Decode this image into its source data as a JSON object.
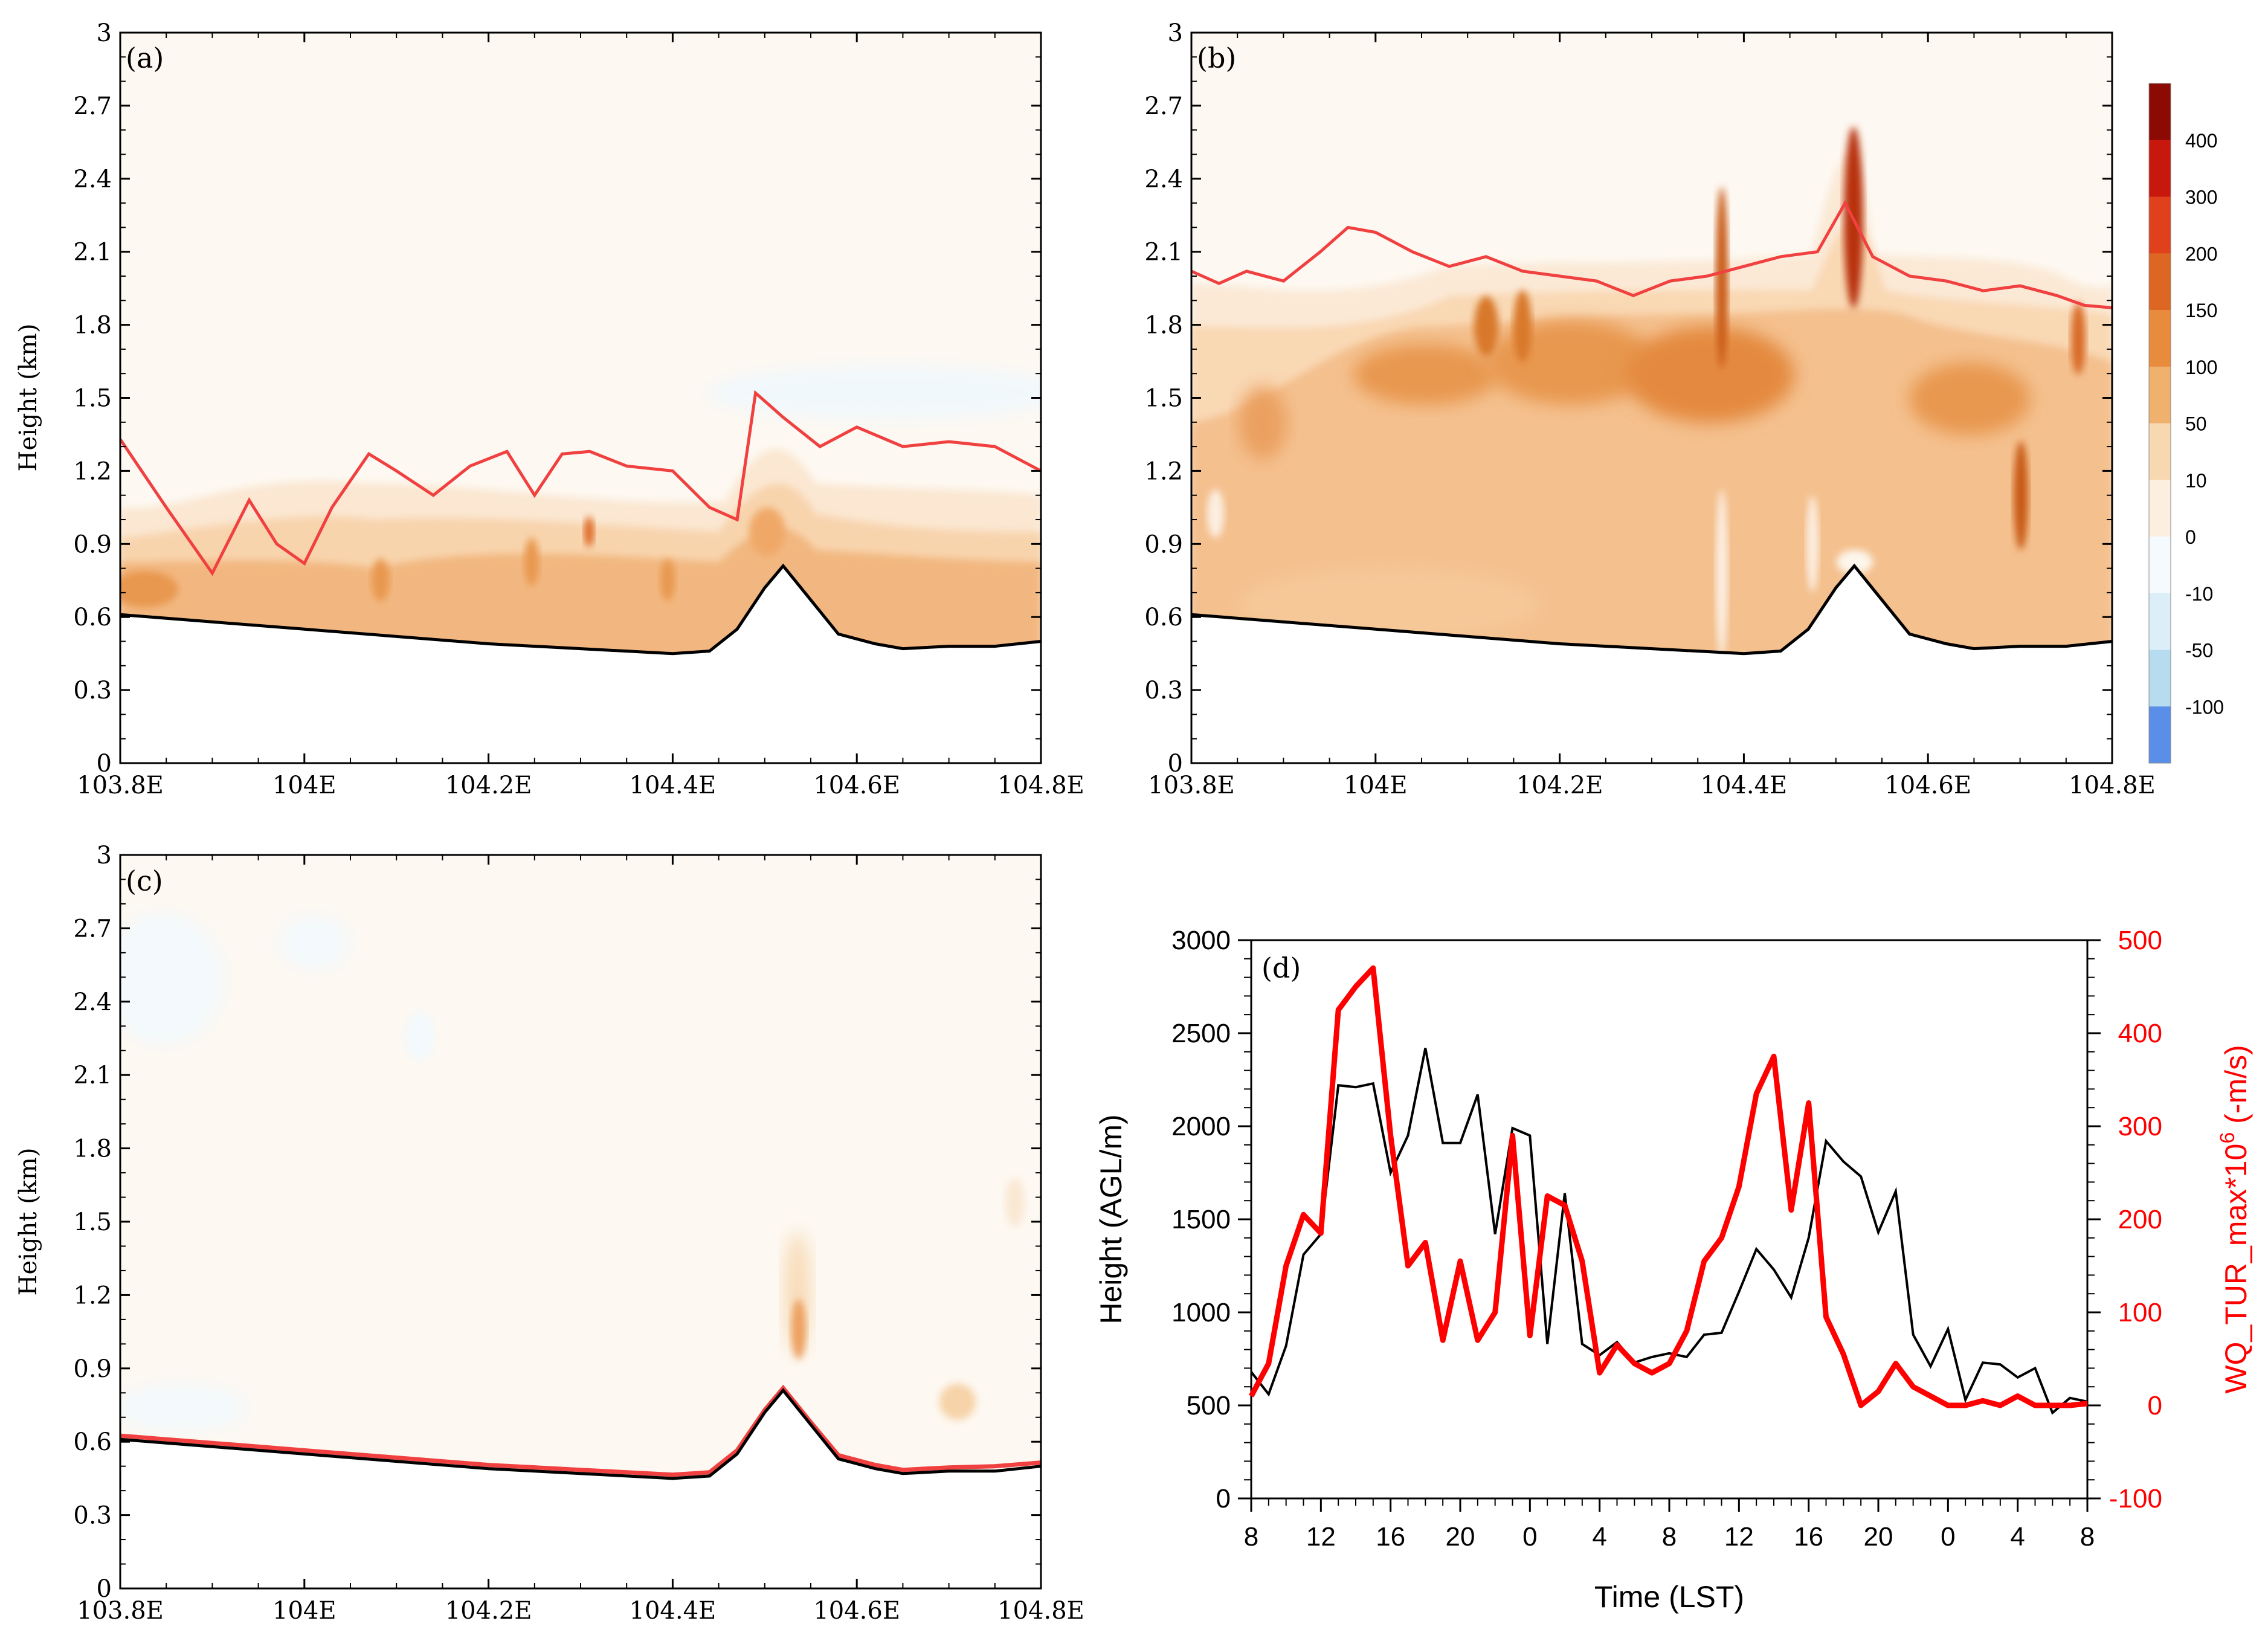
{
  "figure": {
    "shared_x_ticks": [
      "103.8E",
      "104E",
      "104.2E",
      "104.4E",
      "104.6E",
      "104.8E"
    ],
    "shared_y_ticks": [
      "0",
      "0.3",
      "0.6",
      "0.9",
      "1.2",
      "1.5",
      "1.8",
      "2.1",
      "2.4",
      "2.7",
      "3"
    ],
    "shared_ylabel": "Height (km)"
  },
  "colorbar": {
    "labels": [
      "400",
      "300",
      "200",
      "150",
      "100",
      "50",
      "10",
      "0",
      "-10",
      "-50",
      "-100"
    ],
    "colors": [
      "#8b0a04",
      "#c8180e",
      "#e0401c",
      "#dc6622",
      "#e88b3c",
      "#f0b06e",
      "#f8d8b0",
      "#fcefe0",
      "#f4fafd",
      "#dceef8",
      "#b8dcef",
      "#5a8ee8"
    ]
  },
  "chart_data": [
    {
      "panel": "a",
      "type": "contour_cross_section",
      "label": "(a)",
      "xlim": [
        103.8,
        104.8
      ],
      "ylim": [
        0,
        3
      ],
      "ylabel": "Height (km)",
      "terrain_km": [
        [
          103.8,
          0.61
        ],
        [
          103.9,
          0.58
        ],
        [
          104.0,
          0.55
        ],
        [
          104.1,
          0.52
        ],
        [
          104.2,
          0.49
        ],
        [
          104.3,
          0.47
        ],
        [
          104.4,
          0.45
        ],
        [
          104.44,
          0.46
        ],
        [
          104.47,
          0.55
        ],
        [
          104.5,
          0.72
        ],
        [
          104.52,
          0.81
        ],
        [
          104.55,
          0.67
        ],
        [
          104.58,
          0.53
        ],
        [
          104.62,
          0.49
        ],
        [
          104.65,
          0.47
        ],
        [
          104.7,
          0.48
        ],
        [
          104.75,
          0.48
        ],
        [
          104.8,
          0.5
        ]
      ],
      "pbl_height_km": [
        [
          103.8,
          1.33
        ],
        [
          103.85,
          1.05
        ],
        [
          103.9,
          0.78
        ],
        [
          103.94,
          1.08
        ],
        [
          103.97,
          0.9
        ],
        [
          104.0,
          0.82
        ],
        [
          104.03,
          1.05
        ],
        [
          104.07,
          1.27
        ],
        [
          104.1,
          1.2
        ],
        [
          104.14,
          1.1
        ],
        [
          104.18,
          1.22
        ],
        [
          104.22,
          1.28
        ],
        [
          104.25,
          1.1
        ],
        [
          104.28,
          1.27
        ],
        [
          104.31,
          1.28
        ],
        [
          104.35,
          1.22
        ],
        [
          104.4,
          1.2
        ],
        [
          104.44,
          1.05
        ],
        [
          104.47,
          1.0
        ],
        [
          104.49,
          1.52
        ],
        [
          104.52,
          1.42
        ],
        [
          104.56,
          1.3
        ],
        [
          104.6,
          1.38
        ],
        [
          104.65,
          1.3
        ],
        [
          104.7,
          1.32
        ],
        [
          104.75,
          1.3
        ],
        [
          104.8,
          1.2
        ]
      ]
    },
    {
      "panel": "b",
      "type": "contour_cross_section",
      "label": "(b)",
      "xlim": [
        103.8,
        104.8
      ],
      "ylim": [
        0,
        3
      ],
      "ylabel": "",
      "terrain_km": [
        [
          103.8,
          0.61
        ],
        [
          103.9,
          0.58
        ],
        [
          104.0,
          0.55
        ],
        [
          104.1,
          0.52
        ],
        [
          104.2,
          0.49
        ],
        [
          104.3,
          0.47
        ],
        [
          104.4,
          0.45
        ],
        [
          104.44,
          0.46
        ],
        [
          104.47,
          0.55
        ],
        [
          104.5,
          0.72
        ],
        [
          104.52,
          0.81
        ],
        [
          104.55,
          0.67
        ],
        [
          104.58,
          0.53
        ],
        [
          104.62,
          0.49
        ],
        [
          104.65,
          0.47
        ],
        [
          104.7,
          0.48
        ],
        [
          104.75,
          0.48
        ],
        [
          104.8,
          0.5
        ]
      ],
      "pbl_height_km": [
        [
          103.8,
          2.02
        ],
        [
          103.83,
          1.97
        ],
        [
          103.86,
          2.02
        ],
        [
          103.9,
          1.98
        ],
        [
          103.94,
          2.1
        ],
        [
          103.97,
          2.2
        ],
        [
          104.0,
          2.18
        ],
        [
          104.04,
          2.1
        ],
        [
          104.08,
          2.04
        ],
        [
          104.12,
          2.08
        ],
        [
          104.16,
          2.02
        ],
        [
          104.2,
          2.0
        ],
        [
          104.24,
          1.98
        ],
        [
          104.28,
          1.92
        ],
        [
          104.32,
          1.98
        ],
        [
          104.36,
          2.0
        ],
        [
          104.4,
          2.04
        ],
        [
          104.44,
          2.08
        ],
        [
          104.48,
          2.1
        ],
        [
          104.51,
          2.3
        ],
        [
          104.54,
          2.08
        ],
        [
          104.58,
          2.0
        ],
        [
          104.62,
          1.98
        ],
        [
          104.66,
          1.94
        ],
        [
          104.7,
          1.96
        ],
        [
          104.74,
          1.92
        ],
        [
          104.77,
          1.88
        ],
        [
          104.8,
          1.87
        ]
      ]
    },
    {
      "panel": "c",
      "type": "contour_cross_section",
      "label": "(c)",
      "xlim": [
        103.8,
        104.8
      ],
      "ylim": [
        0,
        3
      ],
      "ylabel": "Height (km)",
      "terrain_km": [
        [
          103.8,
          0.61
        ],
        [
          103.9,
          0.58
        ],
        [
          104.0,
          0.55
        ],
        [
          104.1,
          0.52
        ],
        [
          104.2,
          0.49
        ],
        [
          104.3,
          0.47
        ],
        [
          104.4,
          0.45
        ],
        [
          104.44,
          0.46
        ],
        [
          104.47,
          0.55
        ],
        [
          104.5,
          0.72
        ],
        [
          104.52,
          0.81
        ],
        [
          104.55,
          0.67
        ],
        [
          104.58,
          0.53
        ],
        [
          104.62,
          0.49
        ],
        [
          104.65,
          0.47
        ],
        [
          104.7,
          0.48
        ],
        [
          104.75,
          0.48
        ],
        [
          104.8,
          0.5
        ]
      ],
      "pbl_height_km": [
        [
          103.8,
          0.625
        ],
        [
          103.9,
          0.595
        ],
        [
          104.0,
          0.565
        ],
        [
          104.1,
          0.535
        ],
        [
          104.2,
          0.505
        ],
        [
          104.3,
          0.485
        ],
        [
          104.4,
          0.465
        ],
        [
          104.44,
          0.475
        ],
        [
          104.47,
          0.565
        ],
        [
          104.5,
          0.73
        ],
        [
          104.52,
          0.82
        ],
        [
          104.55,
          0.68
        ],
        [
          104.58,
          0.545
        ],
        [
          104.62,
          0.505
        ],
        [
          104.65,
          0.485
        ],
        [
          104.7,
          0.495
        ],
        [
          104.75,
          0.5
        ],
        [
          104.8,
          0.515
        ]
      ]
    },
    {
      "panel": "d",
      "type": "line",
      "label": "(d)",
      "xlabel": "Time (LST)",
      "ylabel": "Height (AGL/m)",
      "ylabel_right": "WQ_TUR_max*10",
      "ylabel_right_exp": "6",
      "ylabel_right_unit": " (-m/s)",
      "x_tick_labels": [
        "8",
        "12",
        "16",
        "20",
        "0",
        "4",
        "8",
        "12",
        "16",
        "20",
        "0",
        "4",
        "8"
      ],
      "ylim": [
        0,
        3000
      ],
      "y_ticks": [
        "0",
        "500",
        "1000",
        "1500",
        "2000",
        "2500",
        "3000"
      ],
      "ylim_right": [
        -100,
        500
      ],
      "y_ticks_right": [
        "-100",
        "0",
        "100",
        "200",
        "300",
        "400",
        "500"
      ],
      "series": [
        {
          "name": "Height",
          "axis": "left",
          "color": "#000000",
          "values": [
            680,
            560,
            820,
            1310,
            1420,
            2220,
            2210,
            2230,
            1750,
            1950,
            2420,
            1910,
            1910,
            2170,
            1420,
            1990,
            1950,
            830,
            1640,
            830,
            770,
            840,
            730,
            760,
            780,
            760,
            880,
            890,
            1110,
            1340,
            1230,
            1080,
            1400,
            1920,
            1810,
            1730,
            1430,
            1650,
            880,
            710,
            910,
            530,
            730,
            720,
            650,
            700,
            460,
            540,
            520
          ]
        },
        {
          "name": "WQ_TUR_max",
          "axis": "right",
          "color": "#ff0000",
          "values": [
            10,
            45,
            150,
            205,
            185,
            425,
            450,
            470,
            290,
            150,
            175,
            70,
            155,
            70,
            100,
            290,
            75,
            225,
            215,
            155,
            35,
            65,
            45,
            35,
            45,
            80,
            155,
            180,
            235,
            335,
            375,
            210,
            325,
            95,
            55,
            0,
            15,
            45,
            20,
            10,
            0,
            0,
            5,
            0,
            10,
            0,
            0,
            0,
            2
          ]
        }
      ]
    }
  ]
}
